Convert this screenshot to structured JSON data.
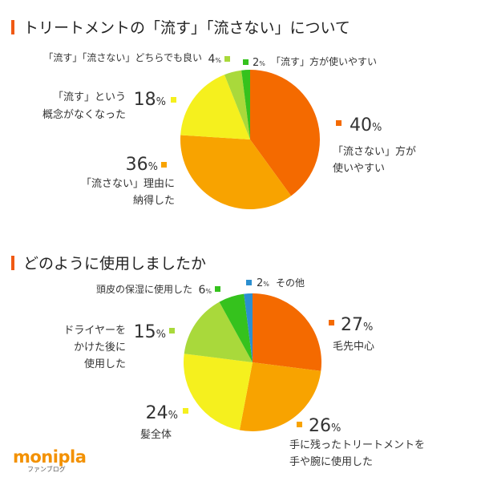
{
  "chart_data": [
    {
      "type": "pie",
      "title": "トリートメントの「流す」「流さない」について",
      "slices": [
        {
          "label": "「流さない」方が使いやすい",
          "value": 40,
          "color": "#f46a00"
        },
        {
          "label": "「流さない」理由に納得した",
          "value": 36,
          "color": "#f8a300"
        },
        {
          "label": "「流す」という概念がなくなった",
          "value": 18,
          "color": "#f5f01e"
        },
        {
          "label": "「流す」「流さない」どちらでも良い",
          "value": 4,
          "color": "#a9d93b"
        },
        {
          "label": "「流す」方が使いやすい",
          "value": 2,
          "color": "#35c21d"
        }
      ]
    },
    {
      "type": "pie",
      "title": "どのように使用しましたか",
      "slices": [
        {
          "label": "毛先中心",
          "value": 27,
          "color": "#f46a00"
        },
        {
          "label": "手に残ったトリートメントを手や腕に使用した",
          "value": 26,
          "color": "#f8a300"
        },
        {
          "label": "髪全体",
          "value": 24,
          "color": "#f5f01e"
        },
        {
          "label": "ドライヤーをかけた後に使用した",
          "value": 15,
          "color": "#a9d93b"
        },
        {
          "label": "頭皮の保湿に使用した",
          "value": 6,
          "color": "#35c21d"
        },
        {
          "label": "その他",
          "value": 2,
          "color": "#2b8fd0"
        }
      ]
    }
  ],
  "pct_unit": "%",
  "logo": {
    "name": "monipla",
    "sub": "ファンブログ"
  }
}
